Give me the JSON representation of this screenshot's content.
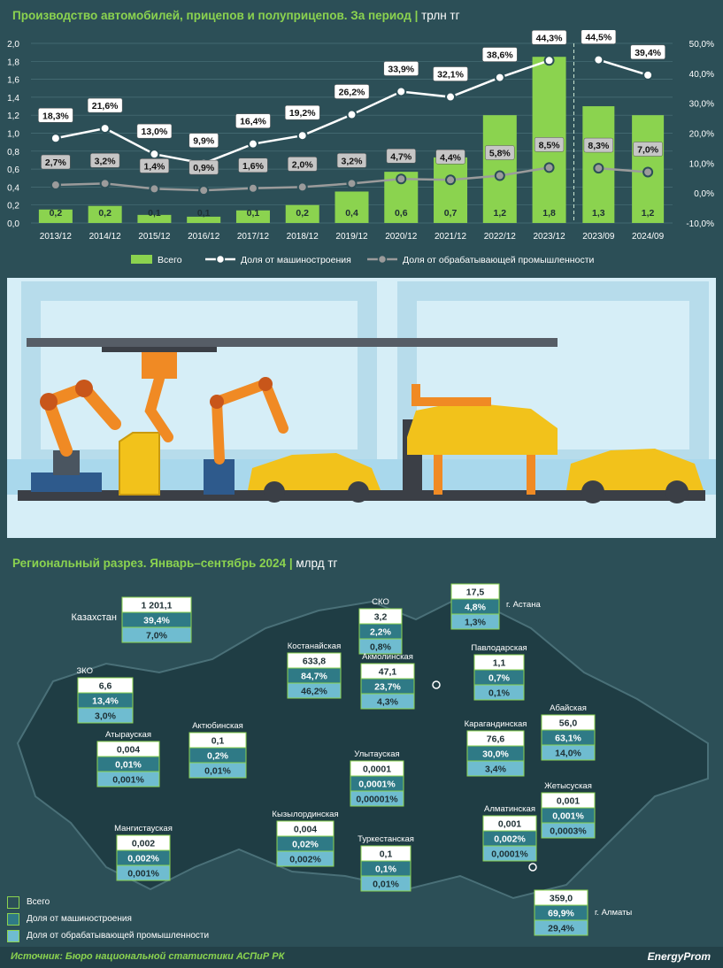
{
  "header1": {
    "title": "Производство автомобилей, прицепов и полуприцепов. За период",
    "unit": "трлн тг"
  },
  "chart_data": {
    "type": "bar",
    "categories": [
      "2013/12",
      "2014/12",
      "2015/12",
      "2016/12",
      "2017/12",
      "2018/12",
      "2019/12",
      "2020/12",
      "2021/12",
      "2022/12",
      "2023/12",
      "2023/09",
      "2024/09"
    ],
    "series": [
      {
        "name": "Всего",
        "type": "bar",
        "axis": "left",
        "values": [
          0.15,
          0.19,
          0.09,
          0.07,
          0.14,
          0.2,
          0.35,
          0.57,
          0.73,
          1.2,
          1.85,
          1.3,
          1.2
        ],
        "labels": [
          "0,2",
          "0,2",
          "0,1",
          "0,1",
          "0,1",
          "0,2",
          "0,4",
          "0,6",
          "0,7",
          "1,2",
          "1,8",
          "1,3",
          "1,2"
        ],
        "color": "#8bd34f"
      },
      {
        "name": "Доля от машиностроения",
        "type": "line",
        "axis": "right",
        "values": [
          18.3,
          21.6,
          13.0,
          9.9,
          16.4,
          19.2,
          26.2,
          33.9,
          32.1,
          38.6,
          44.3,
          44.5,
          39.4
        ],
        "labels": [
          "18,3%",
          "21,6%",
          "13,0%",
          "9,9%",
          "16,4%",
          "19,2%",
          "26,2%",
          "33,9%",
          "32,1%",
          "38,6%",
          "44,3%",
          "44,5%",
          "39,4%"
        ],
        "color": "#ffffff"
      },
      {
        "name": "Доля от обрабатывающей промышленности",
        "type": "line",
        "axis": "right",
        "values": [
          2.7,
          3.2,
          1.4,
          0.9,
          1.6,
          2.0,
          3.2,
          4.7,
          4.4,
          5.8,
          8.5,
          8.3,
          7.0
        ],
        "labels": [
          "2,7%",
          "3,2%",
          "1,4%",
          "0,9%",
          "1,6%",
          "2,0%",
          "3,2%",
          "4,7%",
          "4,4%",
          "5,8%",
          "8,5%",
          "8,3%",
          "7,0%"
        ],
        "color": "#9b9b9b"
      }
    ],
    "y_left": {
      "min": 0,
      "max": 2.0,
      "ticks": [
        "0,0",
        "0,2",
        "0,4",
        "0,6",
        "0,8",
        "1,0",
        "1,2",
        "1,4",
        "1,6",
        "1,8",
        "2,0"
      ]
    },
    "y_right": {
      "min": -10,
      "max": 50,
      "ticks": [
        "-10,0%",
        "0,0%",
        "10,0%",
        "20,0%",
        "30,0%",
        "40,0%",
        "50,0%"
      ]
    },
    "grid": true,
    "legend_position": "bottom"
  },
  "header2": {
    "title": "Региональный разрез. Январь–сентябрь 2024",
    "unit": "млрд тг"
  },
  "regions": [
    {
      "name": "Казахстан",
      "values": [
        "1 201,1",
        "39,4%",
        "7,0%"
      ]
    },
    {
      "name": "СКО",
      "values": [
        "3,2",
        "2,2%",
        "0,8%"
      ]
    },
    {
      "name": "г. Астана",
      "values": [
        "17,5",
        "4,8%",
        "1,3%"
      ]
    },
    {
      "name": "Павлодарская",
      "values": [
        "1,1",
        "0,7%",
        "0,1%"
      ]
    },
    {
      "name": "Костанайская",
      "values": [
        "633,8",
        "84,7%",
        "46,2%"
      ]
    },
    {
      "name": "Акмолинская",
      "values": [
        "47,1",
        "23,7%",
        "4,3%"
      ]
    },
    {
      "name": "ЗКО",
      "values": [
        "6,6",
        "13,4%",
        "3,0%"
      ]
    },
    {
      "name": "Атырауская",
      "values": [
        "0,004",
        "0,01%",
        "0,001%"
      ]
    },
    {
      "name": "Актюбинская",
      "values": [
        "0,1",
        "0,2%",
        "0,01%"
      ]
    },
    {
      "name": "Абайская",
      "values": [
        "56,0",
        "63,1%",
        "14,0%"
      ]
    },
    {
      "name": "Карагандинская",
      "values": [
        "76,6",
        "30,0%",
        "3,4%"
      ]
    },
    {
      "name": "Улытауская",
      "values": [
        "0,0001",
        "0,0001%",
        "0,00001%"
      ]
    },
    {
      "name": "Жетысуская",
      "values": [
        "0,001",
        "0,001%",
        "0,0003%"
      ]
    },
    {
      "name": "Мангистауская",
      "values": [
        "0,002",
        "0,002%",
        "0,001%"
      ]
    },
    {
      "name": "Кызылординская",
      "values": [
        "0,004",
        "0,02%",
        "0,002%"
      ]
    },
    {
      "name": "Туркестанская",
      "values": [
        "0,1",
        "0,1%",
        "0,01%"
      ]
    },
    {
      "name": "Алматинская",
      "values": [
        "0,001",
        "0,002%",
        "0,0001%"
      ]
    },
    {
      "name": "г. Алматы",
      "values": [
        "359,0",
        "69,9%",
        "29,4%"
      ]
    }
  ],
  "map_legend": [
    "Всего",
    "Доля от машиностроения",
    "Доля от обрабатывающей промышленности"
  ],
  "colors": {
    "bg": "#2c4f57",
    "green": "#8bd34f",
    "box1": "#ffffff",
    "box2": "#2f7a86",
    "box3": "#6fbcd0"
  },
  "source": "Источник: Бюро национальной статистики АСПиР РК",
  "logo": "EnergyProm"
}
